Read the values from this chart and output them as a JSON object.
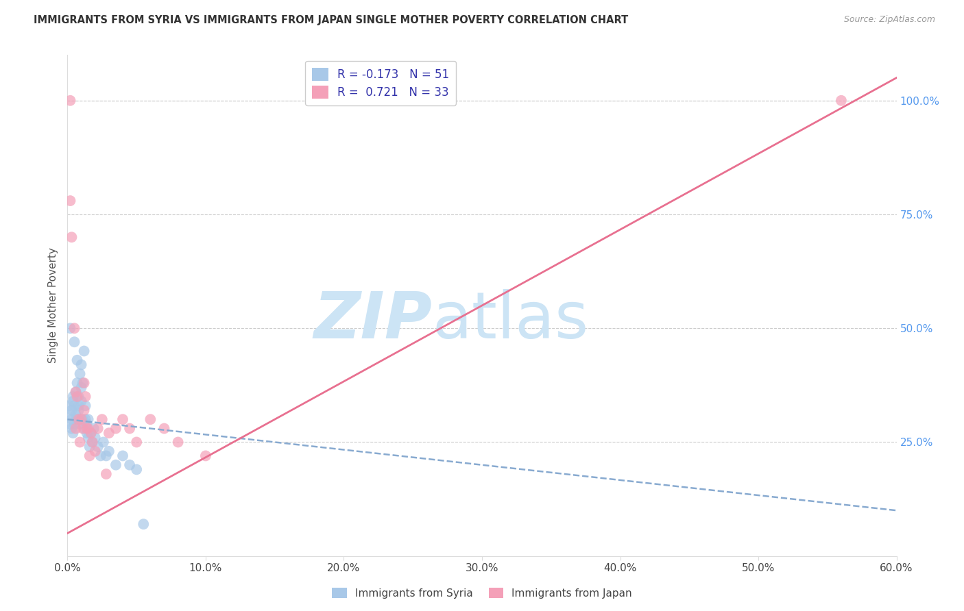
{
  "title": "IMMIGRANTS FROM SYRIA VS IMMIGRANTS FROM JAPAN SINGLE MOTHER POVERTY CORRELATION CHART",
  "source": "Source: ZipAtlas.com",
  "ylabel": "Single Mother Poverty",
  "xlim": [
    0.0,
    0.6
  ],
  "ylim": [
    0.0,
    1.1
  ],
  "yticks": [
    0.25,
    0.5,
    0.75,
    1.0
  ],
  "ytick_labels": [
    "25.0%",
    "50.0%",
    "75.0%",
    "100.0%"
  ],
  "xticks": [
    0.0,
    0.1,
    0.2,
    0.3,
    0.4,
    0.5,
    0.6
  ],
  "xtick_labels": [
    "0.0%",
    "10.0%",
    "20.0%",
    "30.0%",
    "40.0%",
    "50.0%",
    "60.0%"
  ],
  "legend_syria": "Immigrants from Syria",
  "legend_japan": "Immigrants from Japan",
  "R_syria": -0.173,
  "N_syria": 51,
  "R_japan": 0.721,
  "N_japan": 33,
  "color_syria": "#a8c8e8",
  "color_japan": "#f4a0b8",
  "color_syria_line": "#88aad0",
  "color_japan_line": "#e87090",
  "watermark_zip": "ZIP",
  "watermark_atlas": "atlas",
  "watermark_color_zip": "#c8dff0",
  "watermark_color_atlas": "#c8dff0",
  "background_color": "#ffffff",
  "syria_x": [
    0.001,
    0.002,
    0.002,
    0.002,
    0.003,
    0.003,
    0.003,
    0.004,
    0.004,
    0.004,
    0.005,
    0.005,
    0.005,
    0.006,
    0.006,
    0.007,
    0.007,
    0.007,
    0.008,
    0.008,
    0.008,
    0.009,
    0.009,
    0.01,
    0.01,
    0.01,
    0.011,
    0.011,
    0.012,
    0.012,
    0.013,
    0.013,
    0.014,
    0.014,
    0.015,
    0.015,
    0.016,
    0.017,
    0.018,
    0.019,
    0.02,
    0.022,
    0.024,
    0.026,
    0.028,
    0.03,
    0.035,
    0.04,
    0.045,
    0.05,
    0.055
  ],
  "syria_y": [
    0.33,
    0.29,
    0.31,
    0.5,
    0.3,
    0.28,
    0.32,
    0.35,
    0.27,
    0.34,
    0.47,
    0.29,
    0.33,
    0.36,
    0.31,
    0.38,
    0.3,
    0.43,
    0.35,
    0.33,
    0.32,
    0.29,
    0.4,
    0.37,
    0.34,
    0.42,
    0.38,
    0.3,
    0.45,
    0.28,
    0.3,
    0.33,
    0.27,
    0.29,
    0.26,
    0.3,
    0.24,
    0.27,
    0.25,
    0.28,
    0.26,
    0.24,
    0.22,
    0.25,
    0.22,
    0.23,
    0.2,
    0.22,
    0.2,
    0.19,
    0.07
  ],
  "japan_x": [
    0.002,
    0.002,
    0.003,
    0.005,
    0.006,
    0.006,
    0.007,
    0.008,
    0.009,
    0.01,
    0.011,
    0.012,
    0.012,
    0.013,
    0.014,
    0.015,
    0.016,
    0.017,
    0.018,
    0.02,
    0.022,
    0.025,
    0.028,
    0.03,
    0.035,
    0.04,
    0.045,
    0.05,
    0.06,
    0.07,
    0.08,
    0.1,
    0.56
  ],
  "japan_y": [
    1.0,
    0.78,
    0.7,
    0.5,
    0.28,
    0.36,
    0.35,
    0.3,
    0.25,
    0.3,
    0.28,
    0.32,
    0.38,
    0.35,
    0.28,
    0.28,
    0.22,
    0.27,
    0.25,
    0.23,
    0.28,
    0.3,
    0.18,
    0.27,
    0.28,
    0.3,
    0.28,
    0.25,
    0.3,
    0.28,
    0.25,
    0.22,
    1.0
  ],
  "syria_line_x0": 0.0,
  "syria_line_x1": 0.6,
  "syria_line_y0": 0.3,
  "syria_line_y1": 0.1,
  "japan_line_x0": 0.0,
  "japan_line_x1": 0.6,
  "japan_line_y0": 0.05,
  "japan_line_y1": 1.05
}
